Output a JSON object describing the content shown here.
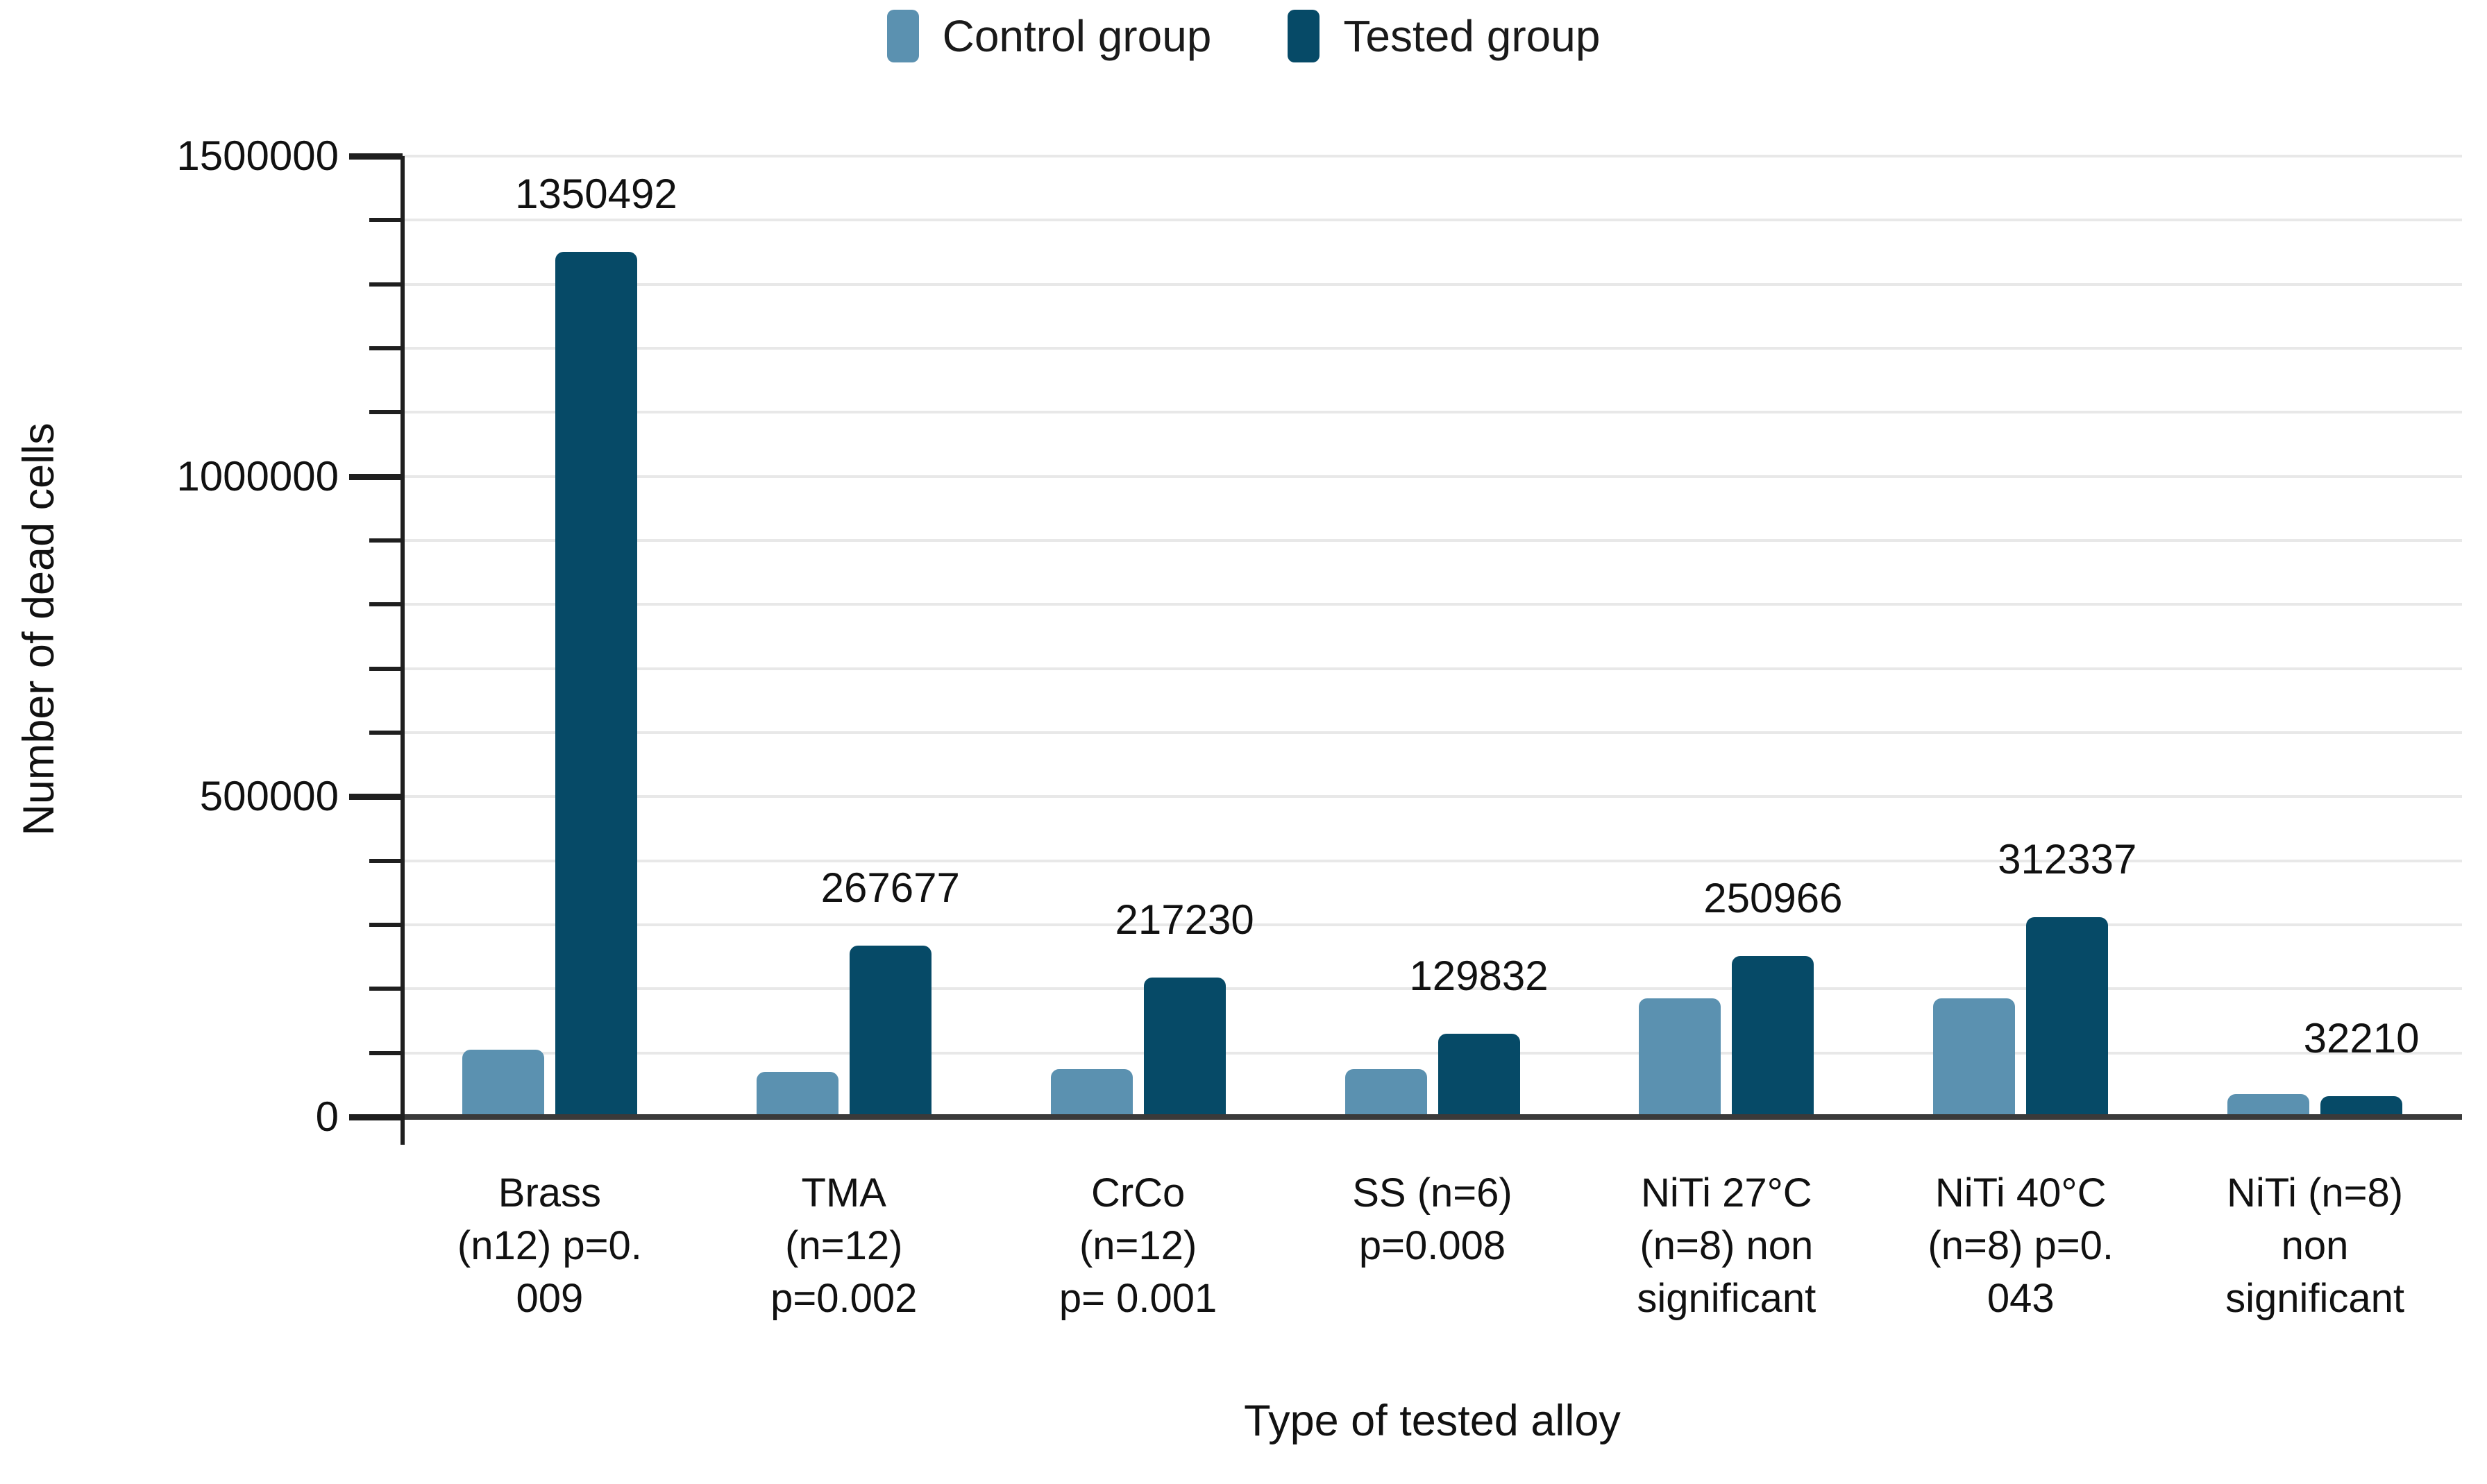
{
  "legend": {
    "items": [
      {
        "label": "Control group",
        "color": "#5b91b0"
      },
      {
        "label": "Tested group",
        "color": "#064a67"
      }
    ]
  },
  "chart_data": {
    "type": "bar",
    "title": "",
    "xlabel": "Type of tested alloy",
    "ylabel": "Number of dead cells",
    "ylim": [
      0,
      1500000
    ],
    "y_major_ticks": [
      0,
      500000,
      1000000,
      1500000
    ],
    "y_tick_labels": [
      "0",
      "500000",
      "1000000",
      "1500000"
    ],
    "gridline_step": 100000,
    "grid": true,
    "legend_position": "top",
    "categories": [
      "Brass (n12) p=0.009",
      "TMA (n=12) p=0.002",
      "CrCo (n=12) p= 0.001",
      "SS (n=6) p=0.008",
      "NiTi 27°C (n=8) non significant",
      "NiTi 40°C (n=8) p=0.043",
      "NiTi (n=8) non significant"
    ],
    "category_lines": [
      [
        "Brass",
        "(n12) p=0.",
        "009"
      ],
      [
        "TMA",
        "(n=12)",
        "p=0.002"
      ],
      [
        "CrCo",
        "(n=12)",
        "p= 0.001"
      ],
      [
        "SS (n=6)",
        "p=0.008"
      ],
      [
        "NiTi 27°C",
        "(n=8) non",
        "significant"
      ],
      [
        "NiTi 40°C",
        "(n=8) p=0.",
        "043"
      ],
      [
        "NiTi (n=8)",
        "non",
        "significant"
      ]
    ],
    "series": [
      {
        "name": "Control group",
        "color": "#5b91b0",
        "values": [
          105000,
          70000,
          75000,
          75000,
          185000,
          185000,
          36000
        ],
        "show_data_labels": false
      },
      {
        "name": "Tested group",
        "color": "#064a67",
        "values": [
          1350492,
          267677,
          217230,
          129832,
          250966,
          312337,
          32210
        ],
        "show_data_labels": true,
        "data_labels": [
          "1350492",
          "267677",
          "217230",
          "129832",
          "250966",
          "312337",
          "32210"
        ]
      }
    ],
    "colors": {
      "gridline": "#e8e8e8",
      "axis_line": "#1f1f1f",
      "baseline": "#3a3a3a",
      "text": "#111111"
    }
  }
}
